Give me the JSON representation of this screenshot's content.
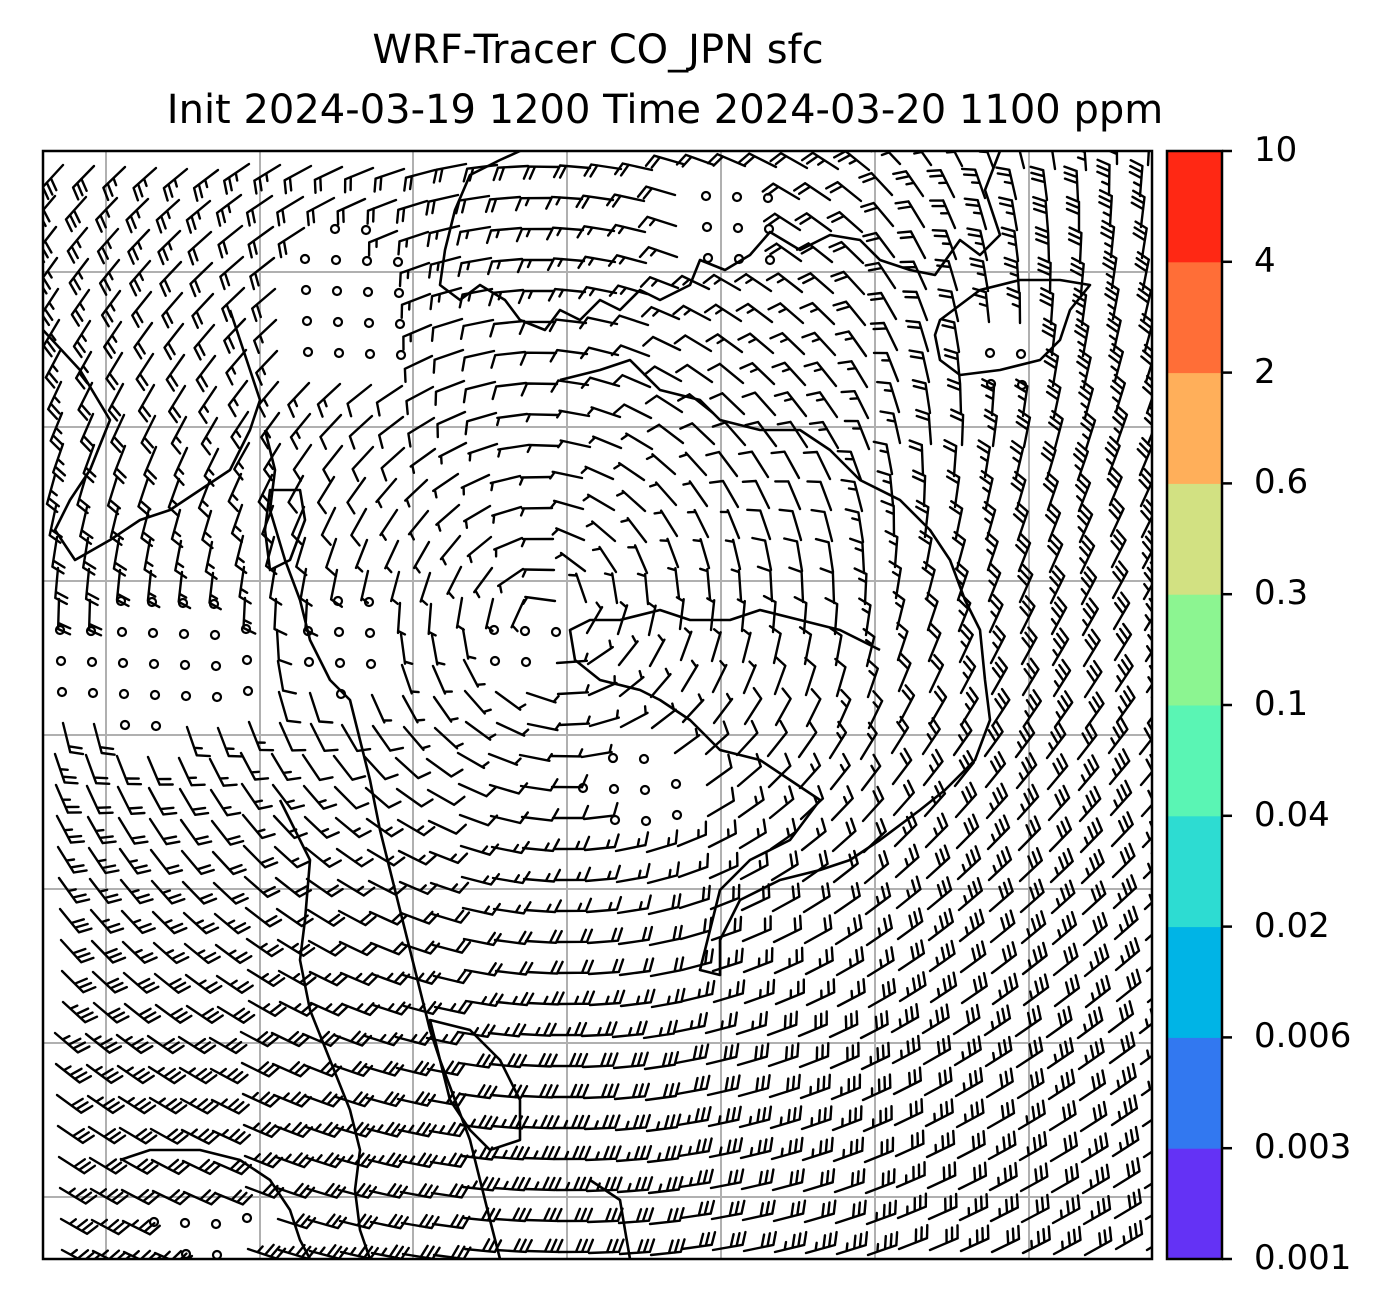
{
  "title": {
    "line1": "WRF-Tracer CO_JPN sfc",
    "line2": "Init 2024-03-19 1200 Time 2024-03-20 1100 ppm"
  },
  "colorbar": {
    "levels": [
      "0.001",
      "0.003",
      "0.006",
      "0.02",
      "0.04",
      "0.1",
      "0.3",
      "0.6",
      "2",
      "4",
      "10"
    ],
    "colors": [
      "#6432f5",
      "#3278f0",
      "#00b4e6",
      "#2ddcd2",
      "#5af5b4",
      "#8cf591",
      "#d2e182",
      "#ffaf5a",
      "#ff6e37",
      "#ff2814"
    ]
  },
  "map": {
    "grid": true,
    "features": [
      "coastlines",
      "wind-barbs",
      "calm-circles"
    ]
  }
}
